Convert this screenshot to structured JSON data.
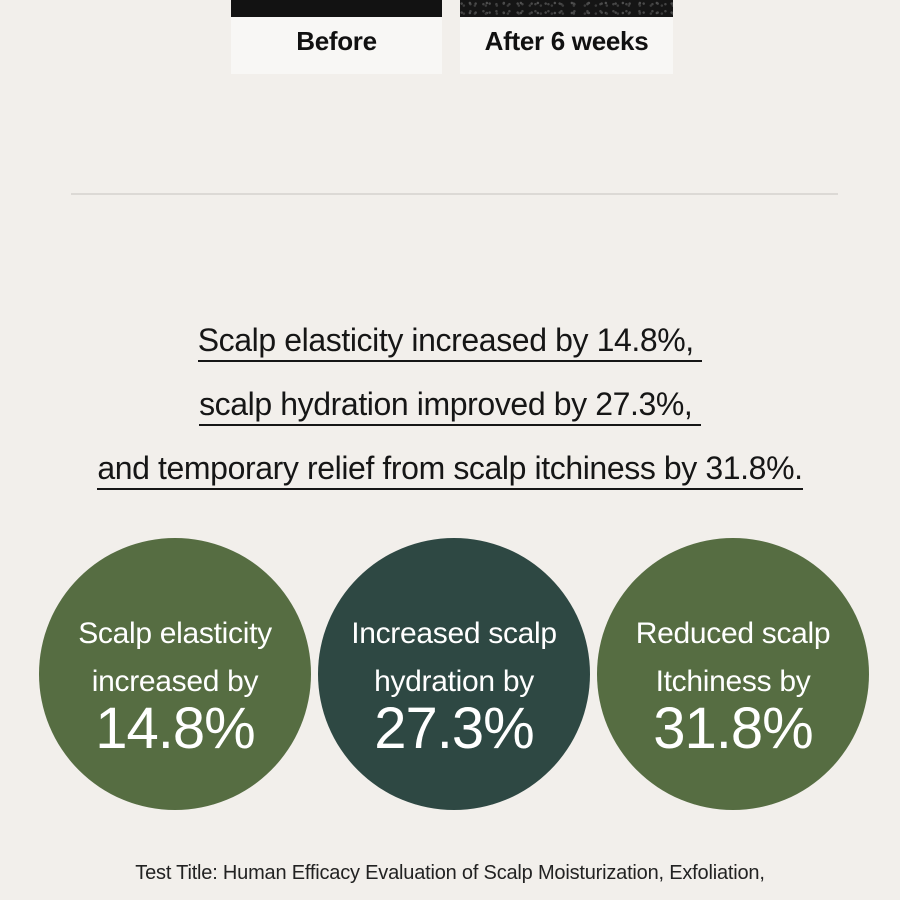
{
  "comparison": {
    "before_label": "Before",
    "after_label": "After 6 weeks"
  },
  "claims": [
    "Scalp elasticity increased by 14.8%, ",
    "scalp hydration improved by 27.3%, ",
    "and temporary relief from scalp itchiness by 31.8%."
  ],
  "stats": [
    {
      "line1": "Scalp elasticity",
      "line2": "increased by",
      "value": "14.8%",
      "color": "#566d42"
    },
    {
      "line1": "Increased scalp",
      "line2": "hydration by",
      "value": "27.3%",
      "color": "#2e4843"
    },
    {
      "line1": "Reduced scalp",
      "line2": "Itchiness by",
      "value": "31.8%",
      "color": "#566d42"
    }
  ],
  "footnote": "Test Title: Human Efficacy Evaluation of Scalp Moisturization, Exfoliation,"
}
